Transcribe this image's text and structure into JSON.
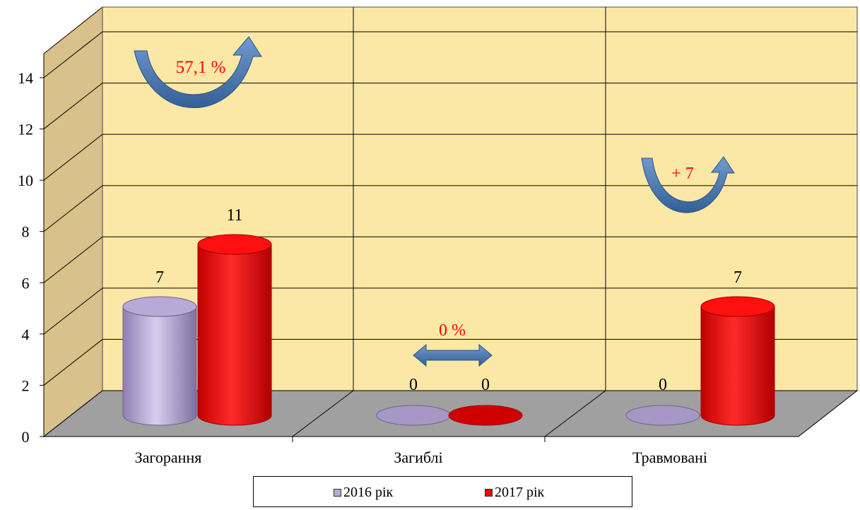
{
  "chart_data": {
    "type": "bar",
    "categories": [
      "Загорання",
      "Загиблі",
      "Травмовані"
    ],
    "series": [
      {
        "name": "2016 рік",
        "values": [
          7,
          0,
          0
        ],
        "color": "#b9a9d6"
      },
      {
        "name": "2017 рік",
        "values": [
          11,
          0,
          7
        ],
        "color": "#ff0000"
      }
    ],
    "ylim": [
      0,
      14
    ],
    "yticks": [
      "0",
      "2",
      "4",
      "6",
      "8",
      "10",
      "12",
      "14"
    ],
    "value_labels": {
      "2016 рік": [
        "7",
        "0",
        "0"
      ],
      "2017 рік": [
        "11",
        "0",
        "7"
      ]
    },
    "annotations": [
      "57,1 %",
      "0 %",
      "+ 7"
    ],
    "grid": true,
    "legend_position": "bottom",
    "wall_color": "#fce8a6",
    "side_wall_color": "#d8c18a",
    "floor_color": "#a0a0a0",
    "annotation_text_color": "#ff0000",
    "arrow_color": "#4f81bd"
  }
}
